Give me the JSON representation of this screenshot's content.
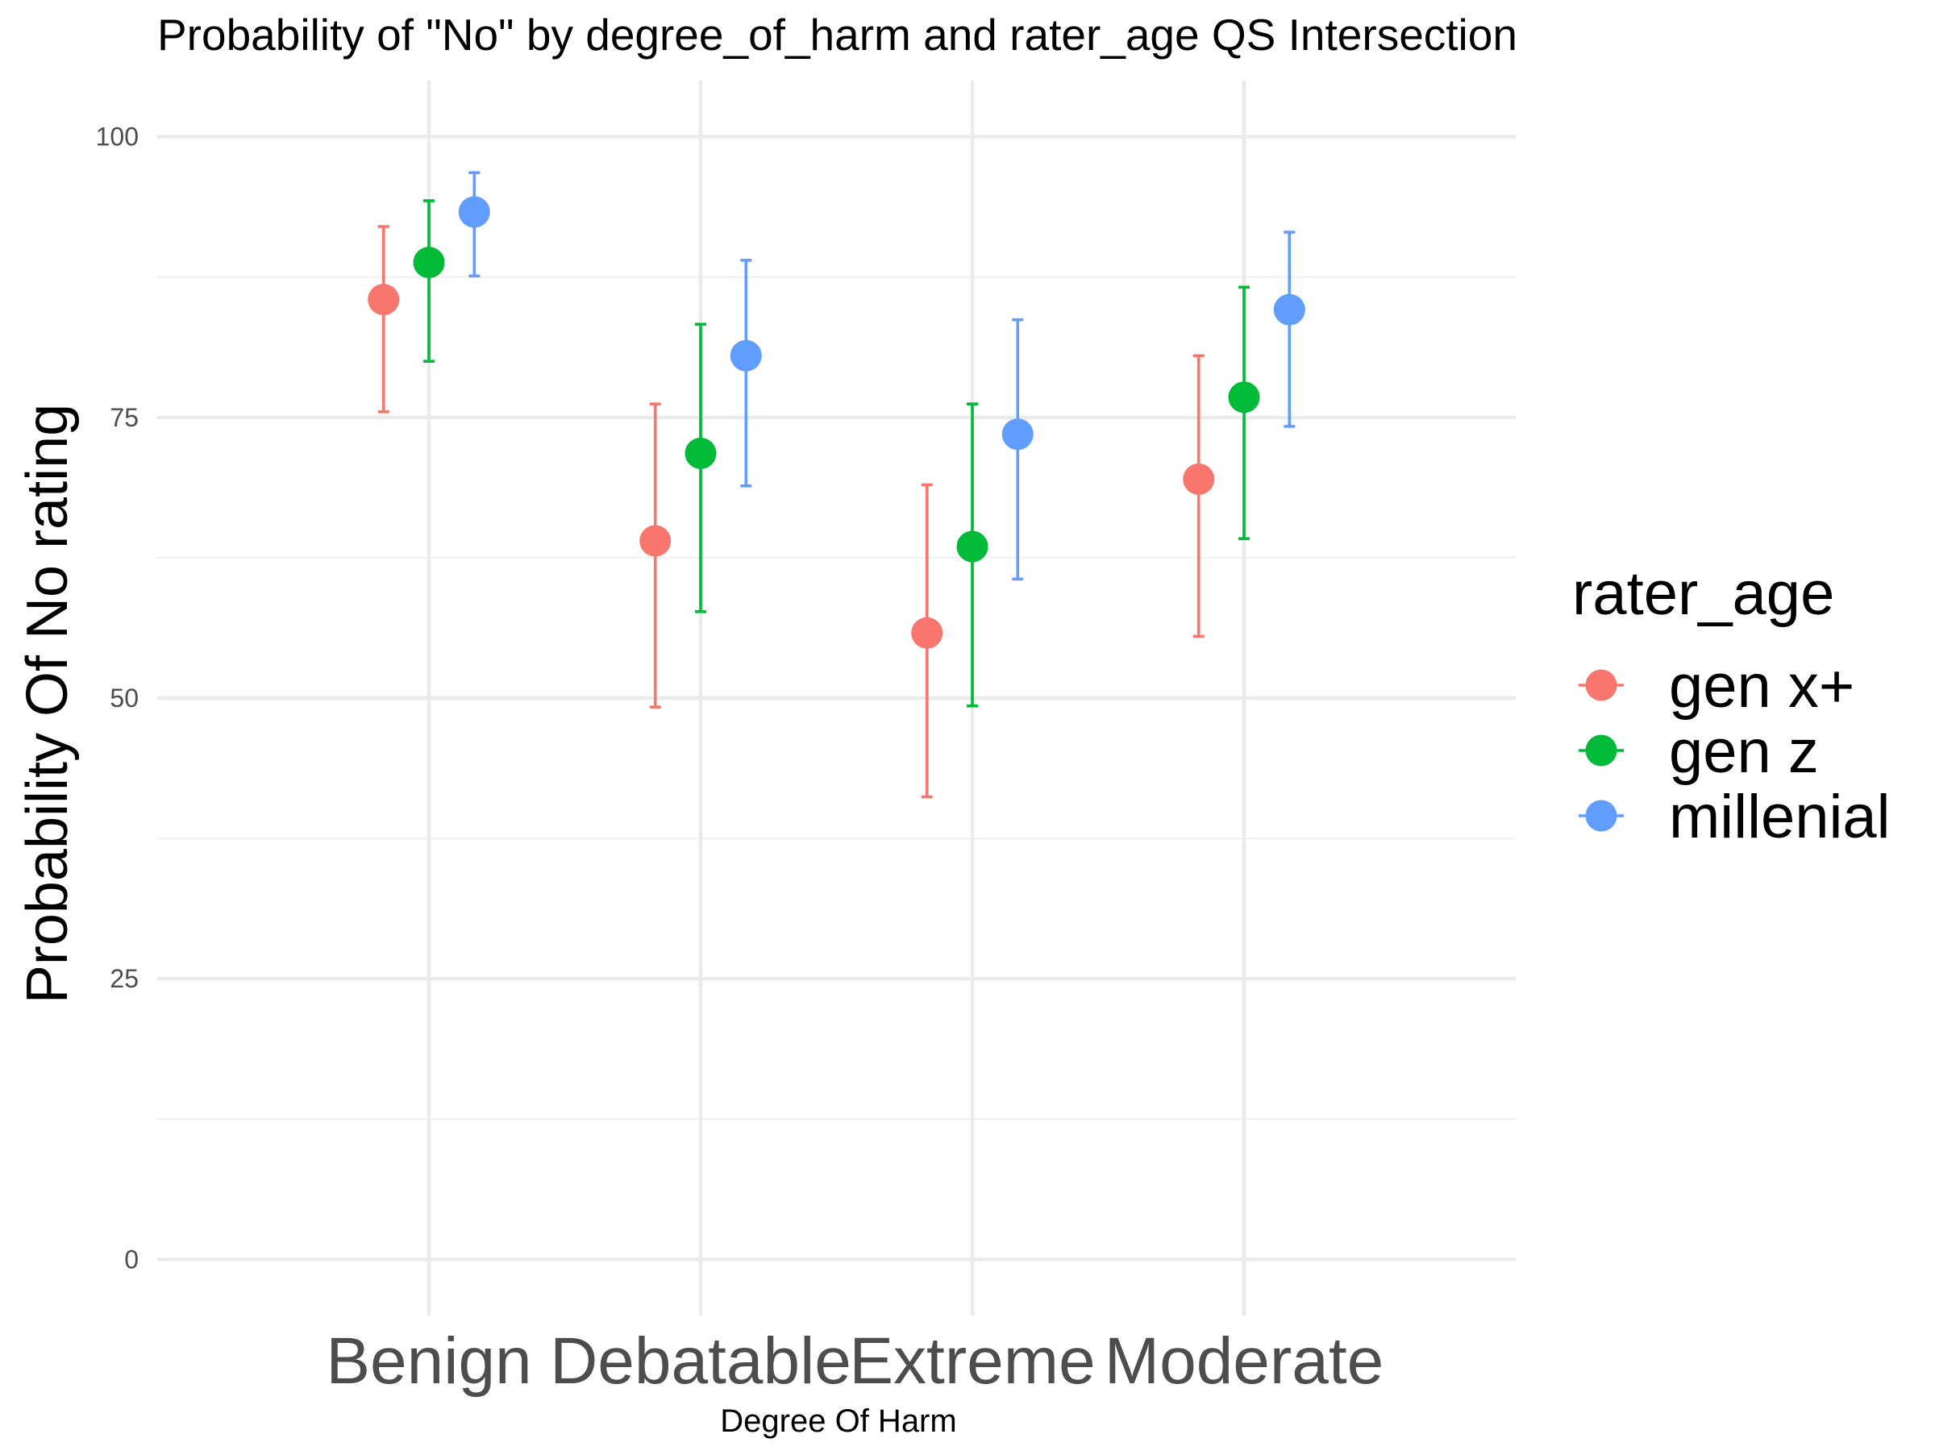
{
  "chart_data": {
    "type": "scatter",
    "title": "Probability of \"No\" by degree_of_harm and  rater_age  QS Intersection",
    "xlabel": "Degree Of Harm",
    "ylabel": "Probability Of No rating",
    "categories": [
      "Benign",
      "Debatable",
      "Extreme",
      "Moderate"
    ],
    "y_ticks": [
      0,
      25,
      50,
      75,
      100
    ],
    "ylim": [
      -5,
      105
    ],
    "grid": true,
    "legend_position": "right",
    "legend_title": "rater_age",
    "error_bars": true,
    "series": [
      {
        "name": "gen x+",
        "color": "#F8766D",
        "values": [
          85.5,
          64.0,
          55.8,
          69.5
        ],
        "lower": [
          75.5,
          49.2,
          41.2,
          55.5
        ],
        "upper": [
          92.0,
          76.2,
          69.0,
          80.5
        ]
      },
      {
        "name": "gen z",
        "color": "#00BA38",
        "values": [
          88.8,
          71.8,
          63.5,
          76.8
        ],
        "lower": [
          80.0,
          57.7,
          49.3,
          64.2
        ],
        "upper": [
          94.3,
          83.3,
          76.2,
          86.6
        ]
      },
      {
        "name": "millenial",
        "color": "#619CFF",
        "values": [
          93.3,
          80.5,
          73.5,
          84.6
        ],
        "lower": [
          87.6,
          68.9,
          60.6,
          74.2
        ],
        "upper": [
          96.8,
          89.0,
          83.7,
          91.5
        ]
      }
    ]
  }
}
